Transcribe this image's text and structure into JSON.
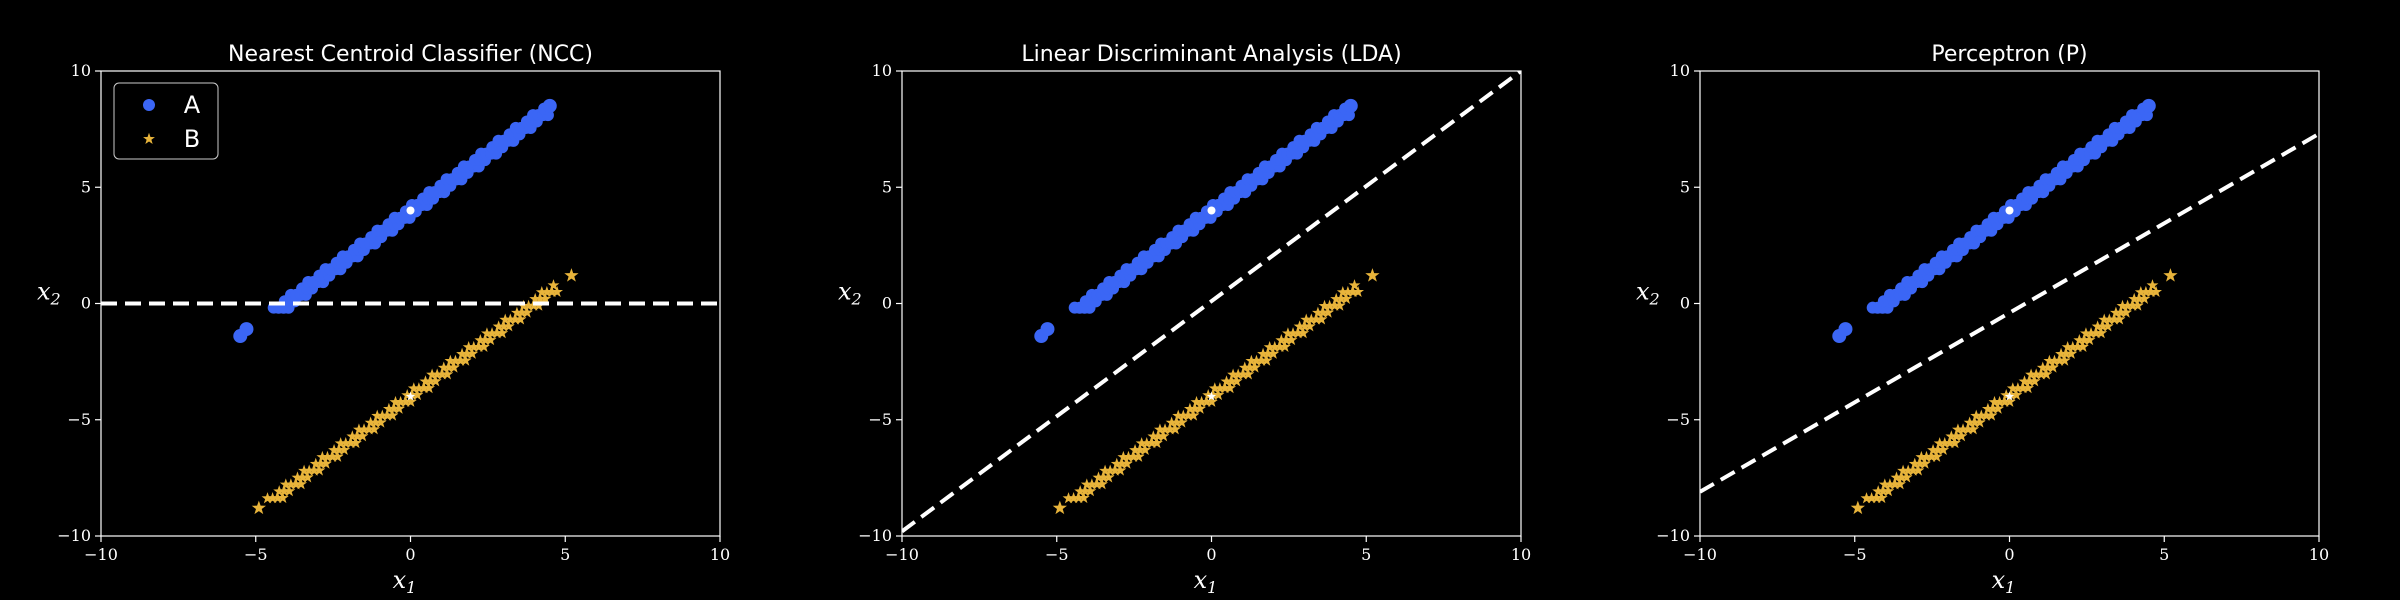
{
  "colors": {
    "background": "#000000",
    "foreground": "#ffffff",
    "class_a": "#3b66f5",
    "class_b": "#e8b43b",
    "boundary": "#ffffff",
    "centroid": "#ffffff"
  },
  "legend": {
    "placement": "upper-left (first panel)",
    "entries": [
      {
        "label": "A",
        "marker": "circle",
        "color": "#3b66f5"
      },
      {
        "label": "B",
        "marker": "star",
        "color": "#e8b43b"
      }
    ]
  },
  "chart_data": [
    {
      "type": "scatter",
      "title": "Nearest Centroid Classifier (NCC)",
      "xlabel": "x1",
      "ylabel": "x2",
      "xlim": [
        -10,
        10
      ],
      "ylim": [
        -10,
        10
      ],
      "xticks": [
        "−10",
        "−5",
        "0",
        "5",
        "10"
      ],
      "yticks": [
        "−10",
        "−5",
        "0",
        "5",
        "10"
      ],
      "grid": false,
      "series": [
        {
          "name": "A",
          "marker": "circle",
          "color": "#3b66f5",
          "line_from": [
            -4.3,
            -0.3
          ],
          "line_to": [
            4.4,
            8.3
          ],
          "outliers": [
            [
              -5.5,
              -1.4
            ],
            [
              -5.3,
              -1.1
            ],
            [
              4.5,
              8.5
            ]
          ],
          "centroid": [
            0,
            4
          ]
        },
        {
          "name": "B",
          "marker": "star",
          "color": "#e8b43b",
          "line_from": [
            -4.5,
            -8.5
          ],
          "line_to": [
            4.7,
            0.7
          ],
          "outliers": [
            [
              -4.9,
              -8.8
            ],
            [
              5.2,
              1.2
            ]
          ],
          "centroid": [
            0,
            -4
          ]
        }
      ],
      "boundary": {
        "style": "dashed",
        "from": [
          -10,
          0
        ],
        "to": [
          10,
          0
        ]
      }
    },
    {
      "type": "scatter",
      "title": "Linear Discriminant Analysis (LDA)",
      "xlabel": "x1",
      "ylabel": "x2",
      "xlim": [
        -10,
        10
      ],
      "ylim": [
        -10,
        10
      ],
      "xticks": [
        "−10",
        "−5",
        "0",
        "5",
        "10"
      ],
      "yticks": [
        "−10",
        "−5",
        "0",
        "5",
        "10"
      ],
      "grid": false,
      "series": [
        {
          "name": "A",
          "marker": "circle",
          "color": "#3b66f5",
          "line_from": [
            -4.3,
            -0.3
          ],
          "line_to": [
            4.4,
            8.3
          ],
          "outliers": [
            [
              -5.5,
              -1.4
            ],
            [
              -5.3,
              -1.1
            ],
            [
              4.5,
              8.5
            ]
          ],
          "centroid": [
            0,
            4
          ]
        },
        {
          "name": "B",
          "marker": "star",
          "color": "#e8b43b",
          "line_from": [
            -4.5,
            -8.5
          ],
          "line_to": [
            4.7,
            0.7
          ],
          "outliers": [
            [
              -4.9,
              -8.8
            ],
            [
              5.2,
              1.2
            ]
          ],
          "centroid": [
            0,
            -4
          ]
        }
      ],
      "boundary": {
        "style": "dashed",
        "from": [
          -10,
          -9.8
        ],
        "to": [
          10,
          10
        ]
      }
    },
    {
      "type": "scatter",
      "title": "Perceptron (P)",
      "xlabel": "x1",
      "ylabel": "x2",
      "xlim": [
        -10,
        10
      ],
      "ylim": [
        -10,
        10
      ],
      "xticks": [
        "−10",
        "−5",
        "0",
        "5",
        "10"
      ],
      "yticks": [
        "−10",
        "−5",
        "0",
        "5",
        "10"
      ],
      "grid": false,
      "series": [
        {
          "name": "A",
          "marker": "circle",
          "color": "#3b66f5",
          "line_from": [
            -4.3,
            -0.3
          ],
          "line_to": [
            4.4,
            8.3
          ],
          "outliers": [
            [
              -5.5,
              -1.4
            ],
            [
              -5.3,
              -1.1
            ],
            [
              4.5,
              8.5
            ]
          ],
          "centroid": [
            0,
            4
          ]
        },
        {
          "name": "B",
          "marker": "star",
          "color": "#e8b43b",
          "line_from": [
            -4.5,
            -8.5
          ],
          "line_to": [
            4.7,
            0.7
          ],
          "outliers": [
            [
              -4.9,
              -8.8
            ],
            [
              5.2,
              1.2
            ]
          ],
          "centroid": [
            0,
            -4
          ]
        }
      ],
      "boundary": {
        "style": "dashed",
        "from": [
          -10,
          -8.1
        ],
        "to": [
          10,
          7.3
        ]
      }
    }
  ]
}
